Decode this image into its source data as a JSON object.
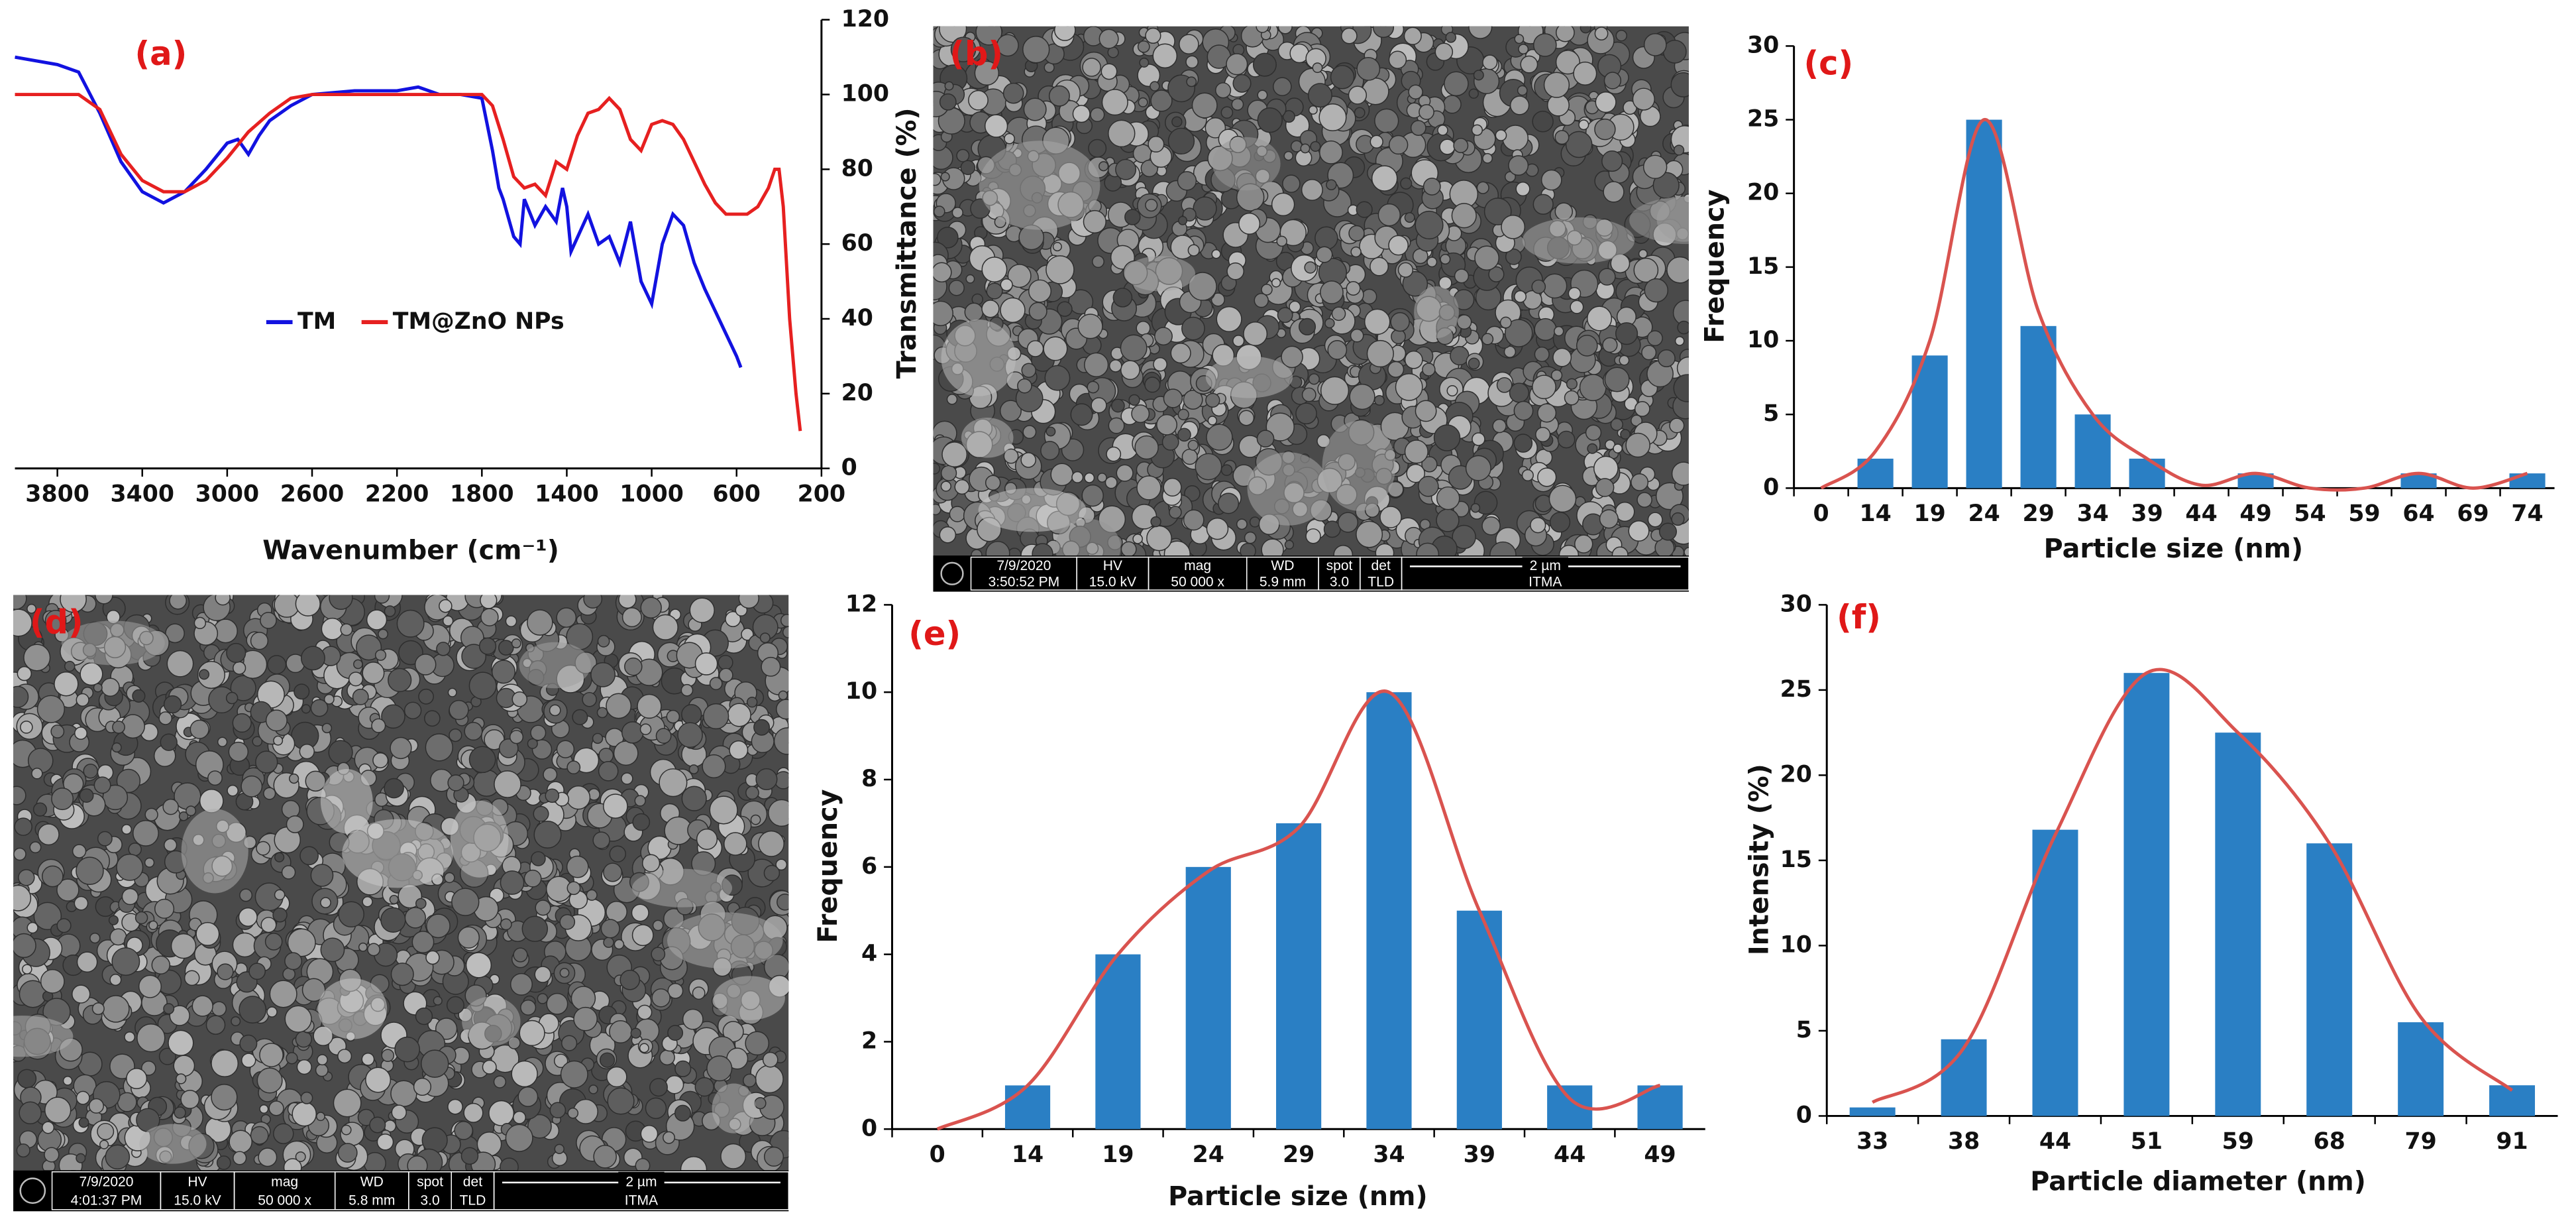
{
  "chart_data": [
    {
      "type": "line",
      "title": "(a)",
      "xlabel": "Wavenumber (cm⁻¹)",
      "ylabel": "Transmittance (%)",
      "xlim": [
        4000,
        200
      ],
      "xticks": [
        3800,
        3400,
        3000,
        2600,
        2200,
        1800,
        1400,
        1000,
        600,
        200
      ],
      "ylim": [
        0,
        120
      ],
      "yticks": [
        0,
        20,
        40,
        60,
        80,
        100,
        120
      ],
      "y_axis_position": "right",
      "series": [
        {
          "name": "TM",
          "color": "#1212e0",
          "x": [
            4000,
            3900,
            3800,
            3700,
            3600,
            3500,
            3400,
            3300,
            3200,
            3100,
            3000,
            2950,
            2900,
            2850,
            2800,
            2700,
            2600,
            2400,
            2200,
            2100,
            2000,
            1900,
            1800,
            1750,
            1720,
            1700,
            1650,
            1620,
            1600,
            1550,
            1500,
            1450,
            1420,
            1400,
            1380,
            1300,
            1250,
            1200,
            1150,
            1100,
            1050,
            1000,
            950,
            900,
            850,
            800,
            750,
            700,
            650,
            600,
            580
          ],
          "values": [
            110,
            109,
            108,
            106,
            95,
            82,
            74,
            71,
            74,
            80,
            87,
            88,
            84,
            89,
            93,
            97,
            100,
            101,
            101,
            102,
            100,
            100,
            99,
            85,
            75,
            72,
            62,
            60,
            72,
            65,
            70,
            66,
            75,
            70,
            58,
            68,
            60,
            62,
            55,
            66,
            50,
            44,
            60,
            68,
            65,
            55,
            48,
            42,
            36,
            30,
            27
          ]
        },
        {
          "name": "TM@ZnO NPs",
          "color": "#e62020",
          "x": [
            4000,
            3700,
            3600,
            3500,
            3400,
            3300,
            3200,
            3100,
            3000,
            2900,
            2800,
            2700,
            2600,
            2000,
            1800,
            1750,
            1700,
            1650,
            1600,
            1550,
            1500,
            1450,
            1400,
            1350,
            1300,
            1250,
            1200,
            1150,
            1100,
            1050,
            1000,
            950,
            900,
            850,
            800,
            750,
            700,
            650,
            600,
            550,
            500,
            450,
            420,
            400,
            380,
            350,
            320,
            300
          ],
          "values": [
            100,
            100,
            96,
            84,
            77,
            74,
            74,
            77,
            83,
            90,
            95,
            99,
            100,
            100,
            100,
            97,
            88,
            78,
            75,
            76,
            73,
            82,
            80,
            89,
            95,
            96,
            99,
            96,
            88,
            85,
            92,
            93,
            92,
            88,
            82,
            76,
            71,
            68,
            68,
            68,
            70,
            75,
            80,
            80,
            70,
            40,
            20,
            10
          ]
        }
      ]
    },
    {
      "type": "bar",
      "title": "(c)",
      "xlabel": "Particle size (nm)",
      "ylabel": "Frequency",
      "categories": [
        "0",
        "14",
        "19",
        "24",
        "29",
        "34",
        "39",
        "44",
        "49",
        "54",
        "59",
        "64",
        "69",
        "74"
      ],
      "ylim": [
        0,
        30
      ],
      "yticks": [
        0,
        5,
        10,
        15,
        20,
        25,
        30
      ],
      "series": [
        {
          "type": "bar",
          "color": "#2a7fc4",
          "values": [
            0,
            2,
            9,
            25,
            11,
            5,
            2,
            0,
            1,
            0,
            0,
            1,
            0,
            1
          ]
        },
        {
          "type": "line",
          "color": "#d9534f",
          "values": [
            0,
            2.5,
            10,
            25,
            12,
            5,
            2,
            0.2,
            1,
            0,
            0,
            1,
            0,
            1
          ]
        }
      ]
    },
    {
      "type": "bar",
      "title": "(e)",
      "xlabel": "Particle size (nm)",
      "ylabel": "Frequency",
      "categories": [
        "0",
        "14",
        "19",
        "24",
        "29",
        "34",
        "39",
        "44",
        "49"
      ],
      "ylim": [
        0,
        12
      ],
      "yticks": [
        0,
        2,
        4,
        6,
        8,
        10,
        12
      ],
      "series": [
        {
          "type": "bar",
          "color": "#2a7fc4",
          "values": [
            0,
            1,
            4,
            6,
            7,
            10,
            5,
            1,
            1
          ]
        },
        {
          "type": "line",
          "color": "#d9534f",
          "values": [
            0,
            1,
            4,
            5.9,
            6.9,
            10,
            5,
            0.7,
            1
          ]
        }
      ]
    },
    {
      "type": "bar",
      "title": "(f)",
      "xlabel": "Particle diameter (nm)",
      "ylabel": "Intensity (%)",
      "categories": [
        "33",
        "38",
        "44",
        "51",
        "59",
        "68",
        "79",
        "91"
      ],
      "ylim": [
        0,
        30
      ],
      "yticks": [
        0,
        5,
        10,
        15,
        20,
        25,
        30
      ],
      "series": [
        {
          "type": "bar",
          "color": "#2a7fc4",
          "values": [
            0.5,
            4.5,
            16.8,
            26,
            22.5,
            16,
            5.5,
            1.8
          ]
        },
        {
          "type": "line",
          "color": "#d9534f",
          "values": [
            0.8,
            4,
            16.5,
            26,
            22.5,
            16,
            5.8,
            1.5
          ]
        }
      ]
    }
  ],
  "images": [
    {
      "label": "(b)",
      "info": [
        [
          "7/9/2020",
          "3:50:52 PM"
        ],
        [
          "HV",
          "15.0 kV"
        ],
        [
          "mag",
          "50 000 x"
        ],
        [
          "WD",
          "5.9 mm"
        ],
        [
          "spot",
          "3.0"
        ],
        [
          "det",
          "TLD"
        ],
        [
          "2 µm",
          "ITMA"
        ]
      ]
    },
    {
      "label": "(d)",
      "info": [
        [
          "7/9/2020",
          "4:01:37 PM"
        ],
        [
          "HV",
          "15.0 kV"
        ],
        [
          "mag",
          "50 000 x"
        ],
        [
          "WD",
          "5.8 mm"
        ],
        [
          "spot",
          "3.0"
        ],
        [
          "det",
          "TLD"
        ],
        [
          "2 µm",
          "ITMA"
        ]
      ]
    }
  ]
}
